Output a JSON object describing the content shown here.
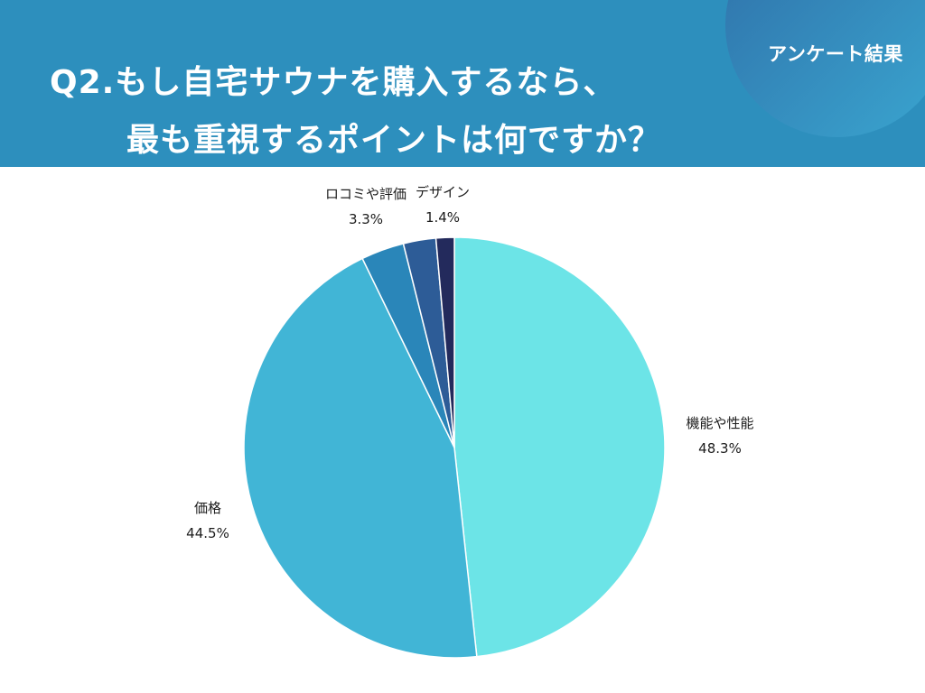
{
  "header": {
    "tag": "アンケート結果",
    "title_line_1": "Q2.もし自宅サウナを購入するなら、",
    "title_line_2": "最も重視するポイントは何ですか？"
  },
  "chart_data": {
    "type": "pie",
    "slices": [
      {
        "label": "機能や性能",
        "value": 48.3,
        "display": "48.3%",
        "color": "#6ce4e7"
      },
      {
        "label": "価格",
        "value": 44.5,
        "display": "44.5%",
        "color": "#41b5d6"
      },
      {
        "label": "ロコミや評価",
        "value": 3.3,
        "display": "3.3%",
        "color": "#2a86b9"
      },
      {
        "label": "",
        "value": 2.5,
        "display": "",
        "color": "#2d5c97"
      },
      {
        "label": "デザイン",
        "value": 1.4,
        "display": "1.4%",
        "color": "#232a5c"
      }
    ]
  }
}
